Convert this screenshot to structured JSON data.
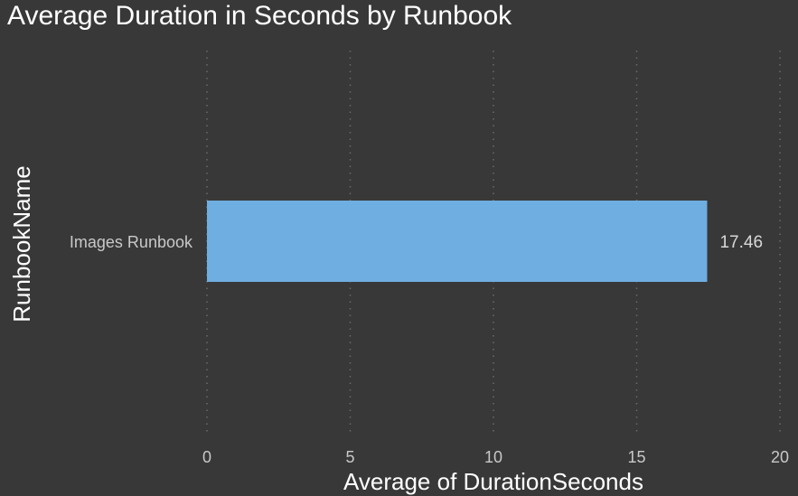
{
  "chart_data": {
    "type": "bar",
    "orientation": "horizontal",
    "title": "Average Duration in Seconds by Runbook",
    "xlabel": "Average of DurationSeconds",
    "ylabel": "RunbookName",
    "categories": [
      "Images Runbook"
    ],
    "values": [
      17.46
    ],
    "data_labels": [
      "17.46"
    ],
    "xlim": [
      0,
      20
    ],
    "xticks": [
      "0",
      "5",
      "10",
      "15",
      "20"
    ],
    "grid": "vertical dotted",
    "legend": "none",
    "colors": {
      "background": "#383838",
      "bar": "#6eaee0",
      "title": "#ffffff",
      "tick": "#c8c8c8",
      "grid": "#6a6a6a"
    }
  }
}
